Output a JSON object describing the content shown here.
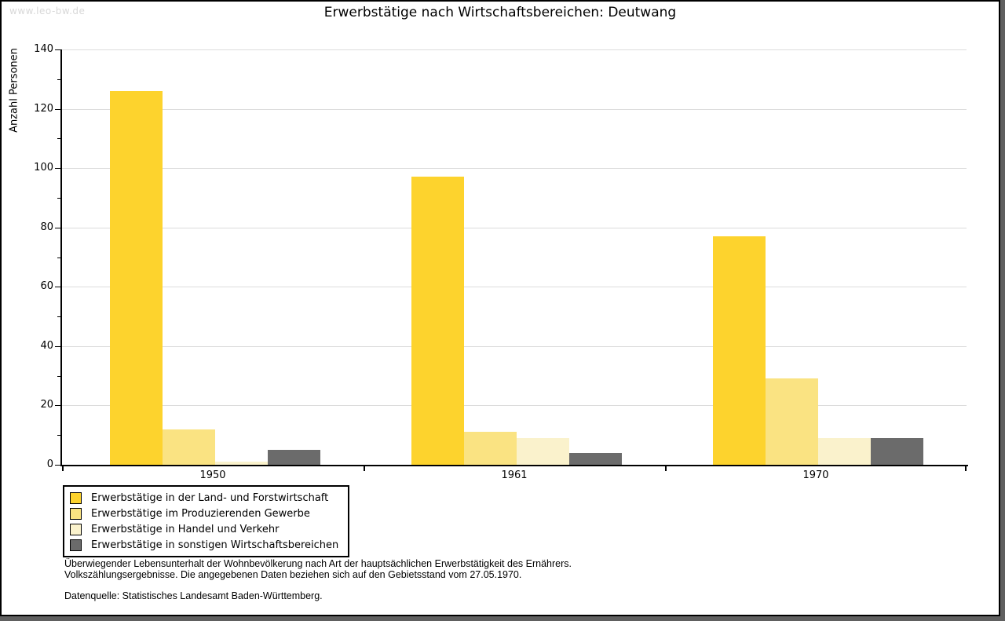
{
  "watermark": "www.leo-bw.de",
  "title": "Erwerbstätige nach Wirtschaftsbereichen: Deutwang",
  "chart_data": {
    "type": "bar",
    "title": "Erwerbstätige nach Wirtschaftsbereichen: Deutwang",
    "categories": [
      "1950",
      "1961",
      "1970"
    ],
    "series": [
      {
        "name": "Erwerbstätige in der Land- und Forstwirtschaft",
        "color": "#FDD32D",
        "values": [
          126,
          97,
          77
        ]
      },
      {
        "name": "Erwerbstätige im Produzierenden Gewerbe",
        "color": "#FAE382",
        "values": [
          12,
          11,
          29
        ]
      },
      {
        "name": "Erwerbstätige in Handel und Verkehr",
        "color": "#FAF2CC",
        "values": [
          1,
          9,
          9
        ]
      },
      {
        "name": "Erwerbstätige in sonstigen Wirtschaftsbereichen",
        "color": "#6B6B6B",
        "values": [
          5,
          4,
          9
        ]
      }
    ],
    "xlabel": "",
    "ylabel": "Anzahl Personen",
    "ylim": [
      0,
      140
    ],
    "ytick_step": 20,
    "ytick_minor_step": 10,
    "grid": true,
    "legend_position": "bottom-left"
  },
  "footer": {
    "line1": "Überwiegender Lebensunterhalt der Wohnbevölkerung nach Art der hauptsächlichen Erwerbstätigkeit des Ernährers.",
    "line2": "Volkszählungsergebnisse. Die angegebenen Daten beziehen sich auf den Gebietsstand vom 27.05.1970.",
    "source": "Datenquelle: Statistisches Landesamt Baden-Württemberg."
  }
}
